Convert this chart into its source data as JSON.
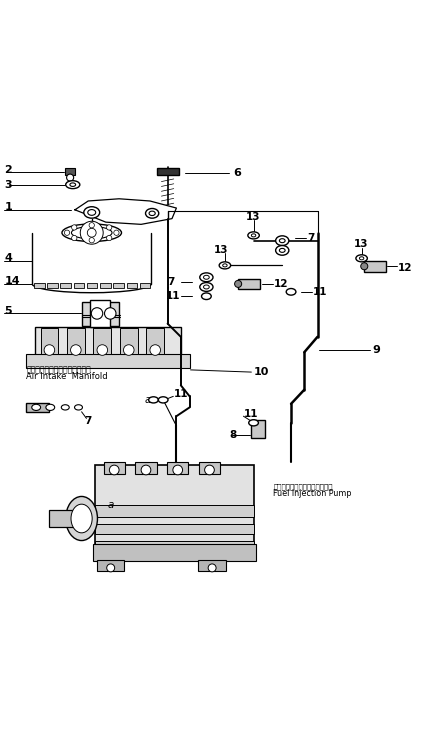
{
  "bg_color": "#ffffff",
  "line_color": "#000000",
  "fig_width": 4.41,
  "fig_height": 7.53,
  "dpi": 100,
  "annotation_texts": {
    "air_jp": "エアーインテークマニホールド",
    "air_en": "Air Intake  Manifold",
    "fuel_jp": "フェルインジェクションポンプ",
    "fuel_en": "Fuel Injection Pump"
  }
}
